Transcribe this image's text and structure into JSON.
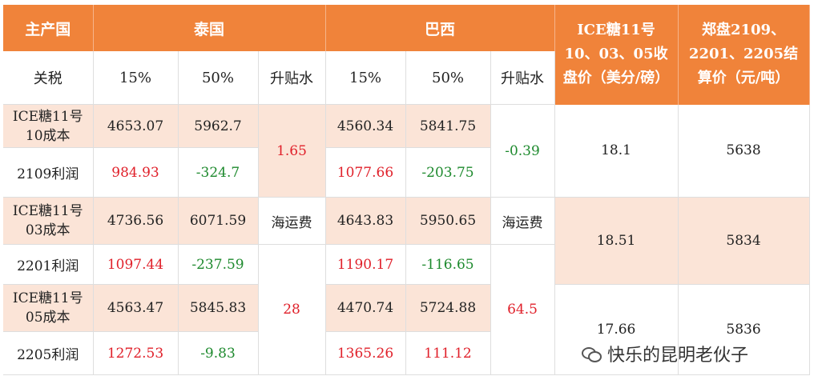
{
  "header": {
    "main_country": "主产国",
    "thailand": "泰国",
    "brazil": "巴西",
    "ice_price": "ICE糖11号10、03、05收盘价（美分/磅）",
    "zhengzhou_price": "郑盘2109、2201、2205结算价（元/吨）"
  },
  "subheader": {
    "tariff": "关税",
    "th_15": "15%",
    "th_50": "50%",
    "th_premium": "升贴水",
    "br_15": "15%",
    "br_50": "50%",
    "br_premium": "升贴水"
  },
  "rows": {
    "cost_10": {
      "label": "ICE糖11号10成本",
      "th_15": "4653.07",
      "th_50": "5962.7",
      "br_15": "4560.34",
      "br_50": "5841.75"
    },
    "profit_2109": {
      "label": "2109利润",
      "th_15": "984.93",
      "th_50": "-324.7",
      "br_15": "1077.66",
      "br_50": "-203.75"
    },
    "cost_03": {
      "label": "ICE糖11号03成本",
      "th_15": "4736.56",
      "th_50": "6071.59",
      "br_15": "4643.83",
      "br_50": "5950.65"
    },
    "profit_2201": {
      "label": "2201利润",
      "th_15": "1097.44",
      "th_50": "-237.59",
      "br_15": "1190.17",
      "br_50": "-116.65"
    },
    "cost_05": {
      "label": "ICE糖11号05成本",
      "th_15": "4563.47",
      "th_50": "5845.83",
      "br_15": "4470.74",
      "br_50": "5724.88"
    },
    "profit_2205": {
      "label": "2205利润",
      "th_15": "1272.53",
      "th_50": "-9.83",
      "br_15": "1365.26",
      "br_50": "111.12"
    }
  },
  "merged": {
    "th_premium_value": "1.65",
    "br_premium_value": "-0.39",
    "th_freight_label": "海运费",
    "br_freight_label": "海运费",
    "th_freight_value": "28",
    "br_freight_value": "64.5",
    "ice_10": "18.1",
    "zz_2109": "5638",
    "ice_03": "18.51",
    "zz_2201": "5834",
    "ice_05": "17.66",
    "zz_2205": "5836"
  },
  "watermark": "快乐的昆明老伙子",
  "colors": {
    "header": "#f0833a",
    "shade": "#fbe4d7",
    "positive": "#e0202a",
    "negative": "#1e8a2e"
  }
}
